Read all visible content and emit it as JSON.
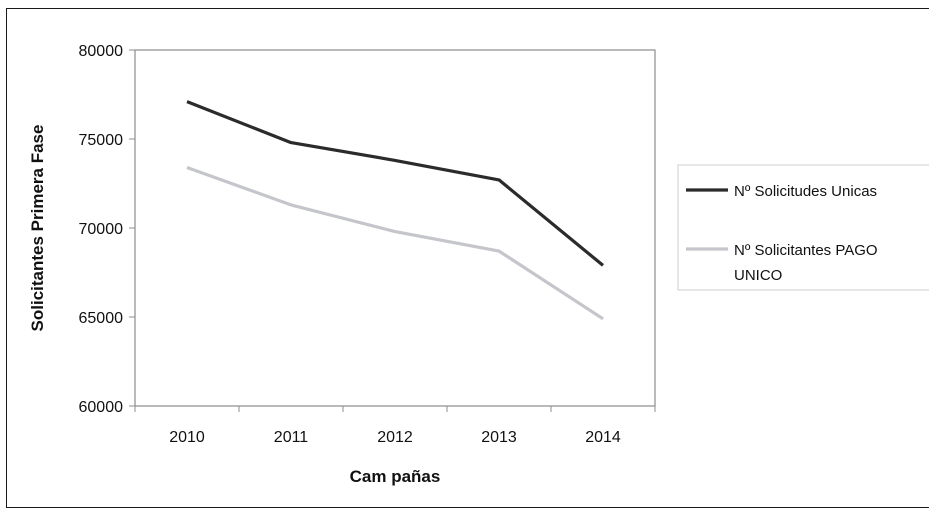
{
  "chart_data": {
    "type": "line",
    "title": "",
    "xlabel": "Cam pañas",
    "ylabel": "Solicitantes Primera Fase",
    "categories": [
      "2010",
      "2011",
      "2012",
      "2013",
      "2014"
    ],
    "ylim": [
      60000,
      80000
    ],
    "yticks": [
      "80000",
      "75000",
      "70000",
      "65000",
      "60000"
    ],
    "grid": false,
    "legend_position": "right",
    "series": [
      {
        "name": "Nº Solicitudes Unicas",
        "values": [
          77100,
          74800,
          73800,
          72700,
          67900
        ],
        "color": "#2b2b2b"
      },
      {
        "name_lines": [
          "Nº Solicitantes PAGO",
          "UNICO"
        ],
        "values": [
          73400,
          71300,
          69800,
          68700,
          64900
        ],
        "color": "#c4c6cb"
      }
    ]
  }
}
